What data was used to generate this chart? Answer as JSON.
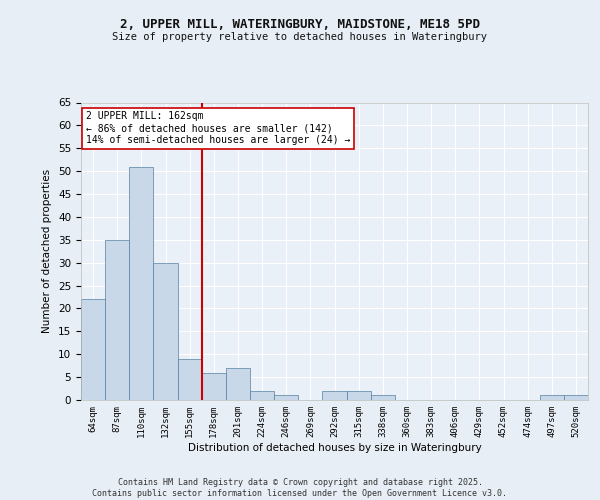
{
  "title1": "2, UPPER MILL, WATERINGBURY, MAIDSTONE, ME18 5PD",
  "title2": "Size of property relative to detached houses in Wateringbury",
  "xlabel": "Distribution of detached houses by size in Wateringbury",
  "ylabel": "Number of detached properties",
  "categories": [
    "64sqm",
    "87sqm",
    "110sqm",
    "132sqm",
    "155sqm",
    "178sqm",
    "201sqm",
    "224sqm",
    "246sqm",
    "269sqm",
    "292sqm",
    "315sqm",
    "338sqm",
    "360sqm",
    "383sqm",
    "406sqm",
    "429sqm",
    "452sqm",
    "474sqm",
    "497sqm",
    "520sqm"
  ],
  "values": [
    22,
    35,
    51,
    30,
    9,
    6,
    7,
    2,
    1,
    0,
    2,
    2,
    1,
    0,
    0,
    0,
    0,
    0,
    0,
    1,
    1
  ],
  "bar_color": "#c8d8e8",
  "bar_edge_color": "#5580a0",
  "ref_line_x": 4.5,
  "ref_line_color": "#cc0000",
  "annotation_text": "2 UPPER MILL: 162sqm\n← 86% of detached houses are smaller (142)\n14% of semi-detached houses are larger (24) →",
  "annotation_box_color": "#ffffff",
  "annotation_box_edge": "#cc0000",
  "footer": "Contains HM Land Registry data © Crown copyright and database right 2025.\nContains public sector information licensed under the Open Government Licence v3.0.",
  "bg_color": "#e8eef5",
  "plot_bg_color": "#eaf0f8",
  "grid_color": "#ffffff",
  "ylim": [
    0,
    65
  ],
  "yticks": [
    0,
    5,
    10,
    15,
    20,
    25,
    30,
    35,
    40,
    45,
    50,
    55,
    60,
    65
  ]
}
